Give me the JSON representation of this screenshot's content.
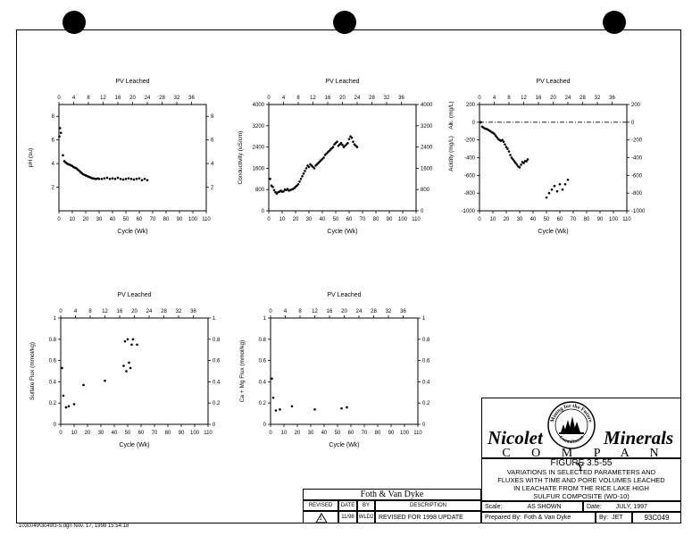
{
  "chart_data": [
    {
      "type": "scatter",
      "title": "PV Leached",
      "xlabel": "Cycle (Wk)",
      "ylabel": "pH (su)",
      "ylabel_right": "",
      "xlim": [
        0,
        110
      ],
      "x_ticks": [
        0,
        10,
        20,
        30,
        40,
        50,
        60,
        70,
        80,
        90,
        100,
        110
      ],
      "top_lim": [
        0,
        40
      ],
      "top_ticks": [
        0,
        4,
        8,
        12,
        16,
        20,
        24,
        28,
        32,
        36
      ],
      "ylim": [
        0,
        9
      ],
      "y_ticks": [
        2,
        4,
        6,
        8
      ],
      "y_ticks_right": [
        2,
        4,
        6,
        8
      ],
      "series": [
        {
          "x": [
            0.3,
            0.8,
            1.5,
            3,
            4,
            5,
            6,
            7,
            8,
            9,
            10,
            11,
            12,
            13,
            14,
            15,
            16,
            17,
            18,
            19,
            20,
            21,
            22,
            23,
            24,
            25,
            26,
            27,
            28,
            29,
            30,
            32,
            34,
            36,
            38,
            40,
            42,
            44,
            46,
            48,
            50,
            52,
            54,
            56,
            58,
            60,
            62,
            64,
            66
          ],
          "y": [
            6.3,
            7.0,
            6.6,
            4.7,
            4.2,
            4.1,
            4.0,
            3.95,
            3.9,
            3.85,
            3.8,
            3.7,
            3.65,
            3.6,
            3.5,
            3.4,
            3.3,
            3.2,
            3.1,
            3.05,
            3.0,
            2.95,
            2.9,
            2.85,
            2.8,
            2.75,
            2.75,
            2.7,
            2.7,
            2.75,
            2.7,
            2.7,
            2.75,
            2.8,
            2.7,
            2.75,
            2.7,
            2.8,
            2.7,
            2.65,
            2.7,
            2.75,
            2.7,
            2.65,
            2.7,
            2.75,
            2.6,
            2.7,
            2.6
          ]
        }
      ]
    },
    {
      "type": "scatter",
      "title": "PV Leached",
      "xlabel": "Cycle (Wk)",
      "ylabel": "Conductivity (uS/cm)",
      "ylabel_right": "",
      "xlim": [
        0,
        110
      ],
      "x_ticks": [
        0,
        10,
        20,
        30,
        40,
        50,
        60,
        70,
        80,
        90,
        100,
        110
      ],
      "top_lim": [
        0,
        40
      ],
      "top_ticks": [
        0,
        4,
        8,
        12,
        16,
        20,
        24,
        28,
        32,
        36
      ],
      "ylim": [
        0,
        4000
      ],
      "y_ticks": [
        0,
        800,
        1600,
        2400,
        3200,
        4000
      ],
      "y_ticks_right": [
        0,
        800,
        1600,
        2400,
        3200,
        4000
      ],
      "series": [
        {
          "x": [
            1,
            2,
            3,
            4,
            5,
            6,
            7,
            8,
            9,
            10,
            11,
            12,
            13,
            14,
            15,
            16,
            17,
            18,
            19,
            20,
            21,
            22,
            23,
            24,
            25,
            26,
            27,
            28,
            29,
            30,
            31,
            32,
            33,
            34,
            35,
            36,
            37,
            38,
            39,
            40,
            41,
            42,
            43,
            44,
            45,
            46,
            47,
            48,
            49,
            50,
            51,
            52,
            53,
            54,
            55,
            56,
            57,
            58,
            59,
            60,
            61,
            62,
            63,
            64,
            65,
            66
          ],
          "y": [
            1200,
            950,
            900,
            780,
            700,
            650,
            700,
            720,
            760,
            720,
            730,
            800,
            780,
            820,
            760,
            780,
            800,
            820,
            850,
            900,
            950,
            1000,
            1100,
            1200,
            1300,
            1400,
            1500,
            1600,
            1700,
            1650,
            1750,
            1700,
            1650,
            1600,
            1700,
            1750,
            1800,
            1850,
            1900,
            1950,
            2000,
            2100,
            2150,
            2200,
            2250,
            2300,
            2350,
            2400,
            2500,
            2550,
            2600,
            2450,
            2500,
            2550,
            2480,
            2400,
            2450,
            2500,
            2550,
            2700,
            2800,
            2750,
            2600,
            2500,
            2450,
            2400
          ]
        }
      ]
    },
    {
      "type": "scatter",
      "title": "PV Leached",
      "xlabel": "Cycle (Wk)",
      "ylabel": "Acidity (mg/L)",
      "ylabel2": "Alk. (mg/L)",
      "ylabel_right": "",
      "xlim": [
        0,
        110
      ],
      "x_ticks": [
        0,
        10,
        20,
        30,
        40,
        50,
        60,
        70,
        80,
        90,
        100,
        110
      ],
      "top_lim": [
        0,
        40
      ],
      "top_ticks": [
        0,
        4,
        8,
        12,
        16,
        20,
        24,
        28,
        32,
        36
      ],
      "ylim": [
        -1000,
        200
      ],
      "y_ticks": [
        -1000,
        -800,
        -600,
        -400,
        -200,
        0,
        200
      ],
      "y_ticks_right": [
        -1000,
        -800,
        -600,
        -400,
        -200,
        0,
        200
      ],
      "reference_line": 0,
      "series": [
        {
          "x": [
            1,
            2,
            3,
            4,
            5,
            6,
            7,
            8,
            9,
            10,
            11,
            12,
            13,
            14,
            15,
            16,
            17,
            18,
            19,
            20,
            21,
            22,
            23,
            24,
            25,
            26,
            27,
            28,
            29,
            30,
            31,
            32,
            33,
            34,
            35,
            36,
            50,
            52,
            54,
            56,
            58,
            60,
            62,
            64,
            66
          ],
          "y": [
            0,
            -50,
            -60,
            -70,
            -75,
            -80,
            -90,
            -100,
            -110,
            -120,
            -130,
            -150,
            -170,
            -190,
            -200,
            -210,
            -200,
            -220,
            -250,
            -280,
            -300,
            -330,
            -370,
            -400,
            -420,
            -440,
            -460,
            -480,
            -500,
            -510,
            -480,
            -450,
            -460,
            -440,
            -440,
            -420,
            -850,
            -800,
            -760,
            -720,
            -780,
            -700,
            -760,
            -700,
            -650
          ]
        }
      ]
    },
    {
      "type": "scatter",
      "title": "PV Leached",
      "xlabel": "Cycle (Wk)",
      "ylabel": "Sulfate Flux (mmol/kg)",
      "ylabel_right": "",
      "xlim": [
        0,
        110
      ],
      "x_ticks": [
        0,
        10,
        20,
        30,
        40,
        50,
        60,
        70,
        80,
        90,
        100,
        110
      ],
      "top_lim": [
        0,
        40
      ],
      "top_ticks": [
        0,
        4,
        8,
        12,
        16,
        20,
        24,
        28,
        32,
        36
      ],
      "ylim": [
        0,
        1.0
      ],
      "y_ticks": [
        0,
        0.2,
        0.4,
        0.6,
        0.8,
        1.0
      ],
      "y_ticks_right": [
        0,
        0.2,
        0.4,
        0.6,
        0.8,
        1.0
      ],
      "series": [
        {
          "x": [
            1,
            2,
            4,
            6,
            10,
            17,
            33,
            47,
            48,
            49,
            50,
            51,
            52,
            53,
            54,
            57
          ],
          "y": [
            0.53,
            0.27,
            0.16,
            0.17,
            0.19,
            0.37,
            0.41,
            0.55,
            0.78,
            0.5,
            0.8,
            0.58,
            0.53,
            0.75,
            0.8,
            0.75
          ]
        }
      ]
    },
    {
      "type": "scatter",
      "title": "PV Leached",
      "xlabel": "Cycle (Wk)",
      "ylabel": "Ca + Mg Flux (mmol/kg)",
      "ylabel_right": "",
      "xlim": [
        0,
        110
      ],
      "x_ticks": [
        0,
        10,
        20,
        30,
        40,
        50,
        60,
        70,
        80,
        90,
        100,
        110
      ],
      "top_lim": [
        0,
        40
      ],
      "top_ticks": [
        0,
        4,
        8,
        12,
        16,
        20,
        24,
        28,
        32,
        36
      ],
      "ylim": [
        0,
        1.0
      ],
      "y_ticks": [
        0,
        0.2,
        0.4,
        0.6,
        0.8,
        1.0
      ],
      "y_ticks_right": [
        0,
        0.2,
        0.4,
        0.6,
        0.8,
        1.0
      ],
      "series": [
        {
          "x": [
            1,
            2,
            4,
            7,
            16,
            33,
            53,
            57
          ],
          "y": [
            0.43,
            0.25,
            0.13,
            0.14,
            0.17,
            0.14,
            0.15,
            0.16
          ]
        }
      ]
    }
  ],
  "company": {
    "name_top": "Nicolet",
    "name_right": "Minerals",
    "company_spaced": "C O M P A N Y",
    "seal_top": "Mining for the Future",
    "seal_bottom": "Commitment"
  },
  "figure": {
    "number": "FIGURE 3.5-55",
    "caption_lines": [
      "VARIATIONS IN SELECTED PARAMETERS AND",
      "FLUXES WITH TIME AND PORE VOLUMES LEACHED",
      "IN LEACHATE FROM THE RICE LAKE HIGH",
      "SULFUR COMPOSITE (WD-10)"
    ]
  },
  "titleblock": {
    "firm": "Foth & Van Dyke",
    "headers": {
      "revised": "REVISED",
      "date": "DATE",
      "by": "BY",
      "description": "DESCRIPTION"
    },
    "row": {
      "revised": "1",
      "date": "11/98",
      "by": "WLD2",
      "description": "REVISED FOR 1998 UPDATE"
    },
    "scale_label": "Scale:",
    "scale_value": "AS SHOWN",
    "date_label": "Date:",
    "date_value": "JULY, 1997",
    "prepared_label": "Prepared By:",
    "prepared_value": "Foth & Van Dyke",
    "by_label": "By:",
    "by_value": "JET",
    "drawing_no": "93C049"
  },
  "footer_note": "103c049\\3c49f3-5.dgn Nov. 17, 1998 15:54:18",
  "colors": {
    "ink": "#000000",
    "background": "#ffffff"
  }
}
